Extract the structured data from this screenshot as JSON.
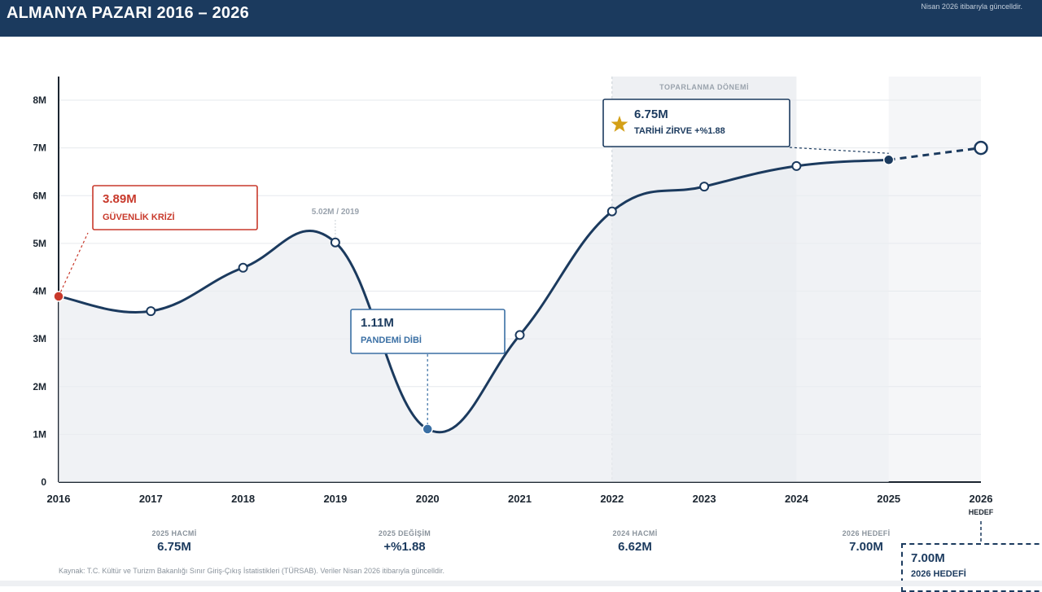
{
  "header": {
    "title": "ALMANYA PAZARI  2016 – 2026",
    "updated": "Nisan 2026 itibarıyla güncelldir."
  },
  "chart_data": {
    "type": "line",
    "x": [
      "2016",
      "2017",
      "2018",
      "2019",
      "2020",
      "2021",
      "2022",
      "2023",
      "2024",
      "2025",
      "2026"
    ],
    "values": [
      3.89,
      3.58,
      4.49,
      5.02,
      1.11,
      3.08,
      5.67,
      6.19,
      6.62,
      6.75,
      7.0
    ],
    "projected_from": "2025",
    "ylim": [
      0,
      8
    ],
    "y_ticks": [
      "0",
      "1M",
      "2M",
      "3M",
      "4M",
      "5M",
      "6M",
      "7M",
      "8M"
    ],
    "x_sublabel_2026": "HEDEF",
    "shaded_region": {
      "label": "TOPARLANMA DÖNEMİ",
      "from": "2022",
      "to": "2024"
    },
    "annotations": {
      "crisis": {
        "value": "3.89M",
        "label": "GÜVENLİK KRİZİ",
        "year": "2016"
      },
      "peak2019": {
        "text": "5.02M / 2019",
        "year": "2019"
      },
      "pandemic": {
        "value": "1.11M",
        "label": "PANDEMİ DİBİ",
        "year": "2020"
      },
      "peak": {
        "value": "6.75M",
        "label": "TARİHİ ZİRVE  +%1.88",
        "year": "2025"
      }
    },
    "colors": {
      "line": "#1b3a5e",
      "crisis": "#c8392b",
      "pandemic": "#3a6fa4",
      "star": "#d4a017",
      "area": "#e9edf1"
    }
  },
  "stats": [
    {
      "label": "2025 HACMİ",
      "value": "6.75M"
    },
    {
      "label": "2025 DEĞİŞİM",
      "value": "+%1.88"
    },
    {
      "label": "2024 HACMİ",
      "value": "6.62M"
    },
    {
      "label": "2026 HEDEFİ",
      "value": "7.00M"
    }
  ],
  "target_box": {
    "value": "7.00M",
    "label": "2026 HEDEFİ"
  },
  "source": "Kaynak: T.C. Kültür ve Turizm Bakanlığı Sınır Giriş-Çıkış İstatistikleri (TÜRSAB). Veriler Nisan 2026 itibarıyla güncelldir."
}
